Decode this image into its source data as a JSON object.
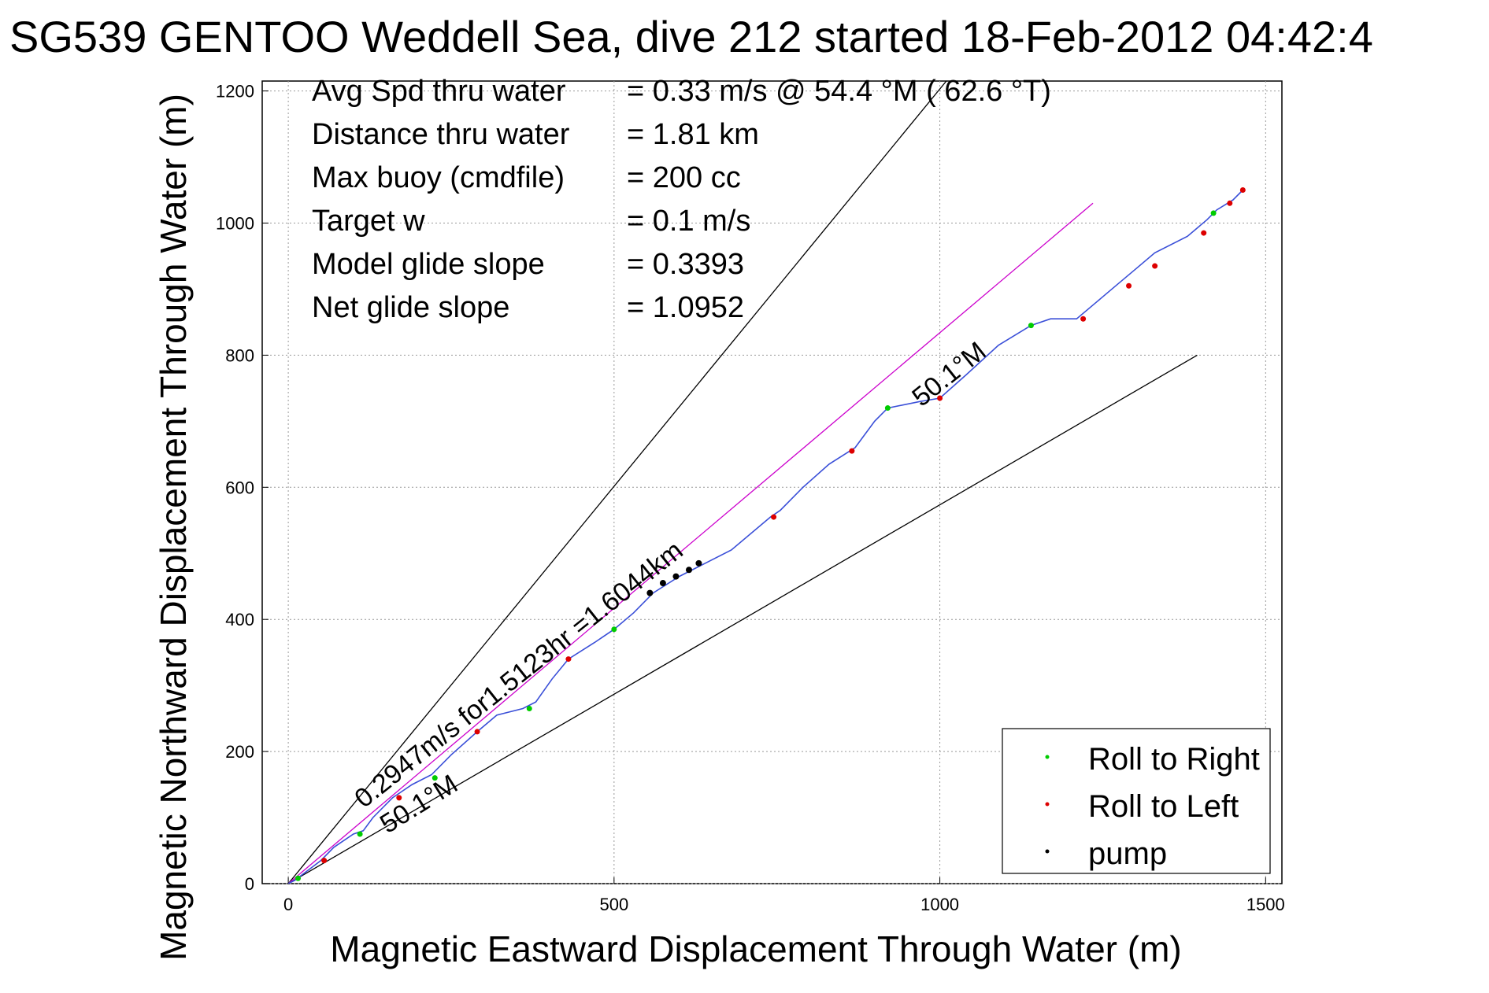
{
  "chart_data": {
    "type": "line",
    "title": "SG539 GENTOO Weddell Sea, dive 212 started 18-Feb-2012 04:42:4",
    "xlabel": "Magnetic Eastward Displacement Through Water (m)",
    "ylabel": "Magnetic Northward Displacement Through Water (m)",
    "xlim": [
      -40,
      1525
    ],
    "ylim": [
      0,
      1215
    ],
    "xticks": [
      0,
      500,
      1000,
      1500
    ],
    "yticks": [
      0,
      200,
      400,
      600,
      800,
      1000,
      1200
    ],
    "grid": true,
    "legend_position": "bottom-right",
    "colors": {
      "track": "#3a4fd8",
      "roll_right": "#00cc00",
      "roll_left": "#dd0000",
      "pump": "#000000",
      "heading_line": "#cc00cc",
      "guide_line": "#000000"
    },
    "info_lines": [
      {
        "label": "Avg Spd thru water",
        "value": "=  0.33 m/s @  54.4 °M ( 62.6 °T)"
      },
      {
        "label": "Distance thru water",
        "value": "=  1.81 km"
      },
      {
        "label": "Max buoy (cmdfile)",
        "value": "= 200 cc"
      },
      {
        "label": "Target w",
        "value": "= 0.1 m/s"
      },
      {
        "label": "Model glide slope",
        "value": "= 0.3393"
      },
      {
        "label": "Net glide slope",
        "value": "= 1.0952"
      }
    ],
    "annotations": {
      "current_text": "0.2947m/s for1.5123hr =1.6044km",
      "heading_low": "50.1°M",
      "heading_high": "50.1°M"
    },
    "legend": [
      {
        "label": "Roll to Right",
        "color": "#00cc00"
      },
      {
        "label": "Roll to Left",
        "color": "#dd0000"
      },
      {
        "label": "pump",
        "color": "#000000"
      }
    ],
    "series": [
      {
        "name": "track",
        "x": [
          0,
          10,
          30,
          50,
          70,
          100,
          115,
          130,
          160,
          190,
          220,
          250,
          290,
          320,
          360,
          380,
          405,
          430,
          470,
          500,
          530,
          560,
          600,
          640,
          680,
          740,
          755,
          790,
          830,
          870,
          900,
          920,
          970,
          1000,
          1040,
          1090,
          1140,
          1170,
          1210,
          1240,
          1270,
          1300,
          1330,
          1380,
          1410,
          1425,
          1450,
          1465
        ],
        "y": [
          0,
          5,
          20,
          35,
          55,
          75,
          80,
          100,
          130,
          150,
          165,
          195,
          230,
          255,
          265,
          275,
          310,
          340,
          365,
          385,
          410,
          440,
          465,
          485,
          505,
          555,
          565,
          600,
          635,
          660,
          700,
          720,
          730,
          735,
          770,
          815,
          845,
          855,
          855,
          880,
          905,
          930,
          955,
          980,
          1005,
          1020,
          1035,
          1050
        ]
      },
      {
        "name": "Roll to Right",
        "x": [
          15,
          110,
          225,
          370,
          500,
          920,
          1140,
          1420
        ],
        "y": [
          8,
          75,
          160,
          265,
          385,
          720,
          845,
          1015
        ]
      },
      {
        "name": "Roll to Left",
        "x": [
          55,
          170,
          290,
          430,
          745,
          865,
          1000,
          1220,
          1290,
          1330,
          1405,
          1445,
          1465
        ],
        "y": [
          35,
          130,
          230,
          340,
          555,
          655,
          735,
          855,
          905,
          935,
          985,
          1030,
          1050
        ]
      },
      {
        "name": "pump",
        "x": [
          555,
          575,
          595,
          615,
          630
        ],
        "y": [
          440,
          455,
          465,
          475,
          485
        ]
      }
    ],
    "lines": [
      {
        "name": "upper guide",
        "x": [
          0,
          1010
        ],
        "y": [
          0,
          1215
        ]
      },
      {
        "name": "lower guide",
        "x": [
          0,
          1395
        ],
        "y": [
          0,
          800
        ]
      },
      {
        "name": "heading line",
        "x": [
          0,
          1235
        ],
        "y": [
          0,
          1030
        ]
      }
    ]
  }
}
